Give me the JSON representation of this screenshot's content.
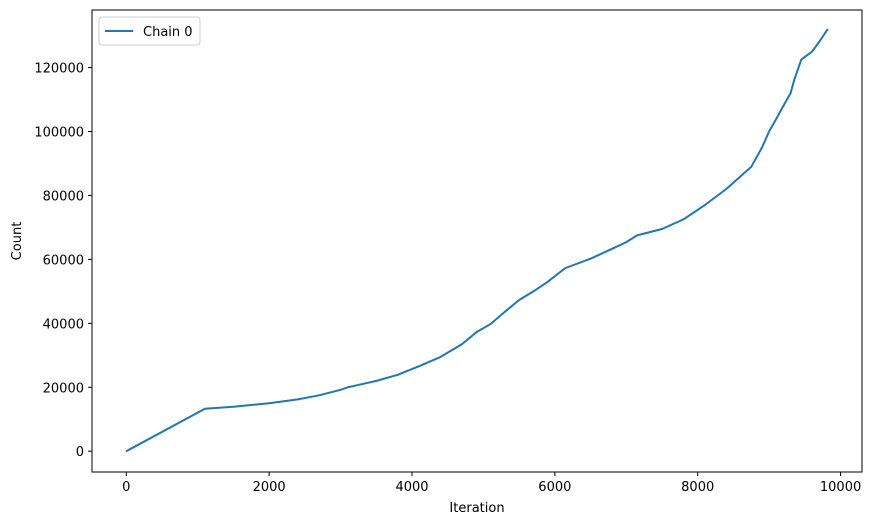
{
  "chart_data": {
    "type": "line",
    "xlabel": "Iteration",
    "ylabel": "Count",
    "xlim": [
      -480,
      10300
    ],
    "ylim": [
      -6500,
      138000
    ],
    "xticks": [
      0,
      2000,
      4000,
      6000,
      8000,
      10000
    ],
    "yticks": [
      0,
      20000,
      40000,
      60000,
      80000,
      100000,
      120000
    ],
    "legend_position": "top-left",
    "grid": false,
    "series": [
      {
        "name": "Chain 0",
        "color": "#1f77b4",
        "x": [
          0,
          1100,
          1500,
          2000,
          2400,
          2700,
          3000,
          3100,
          3500,
          3800,
          4100,
          4400,
          4700,
          4900,
          5100,
          5300,
          5500,
          5700,
          5900,
          6100,
          6150,
          6500,
          6800,
          7000,
          7150,
          7500,
          7800,
          8100,
          8400,
          8600,
          8750,
          8900,
          9000,
          9100,
          9200,
          9300,
          9350,
          9450,
          9600,
          9700,
          9820
        ],
        "y": [
          0,
          13300,
          13900,
          15000,
          16200,
          17500,
          19200,
          20000,
          22000,
          23900,
          26600,
          29500,
          33500,
          37200,
          39800,
          43600,
          47300,
          50000,
          53000,
          56500,
          57300,
          60200,
          63300,
          65400,
          67500,
          69500,
          72500,
          77000,
          82000,
          86000,
          89000,
          95000,
          100000,
          104000,
          108000,
          112000,
          116000,
          122500,
          125000,
          128000,
          132000
        ]
      }
    ]
  }
}
